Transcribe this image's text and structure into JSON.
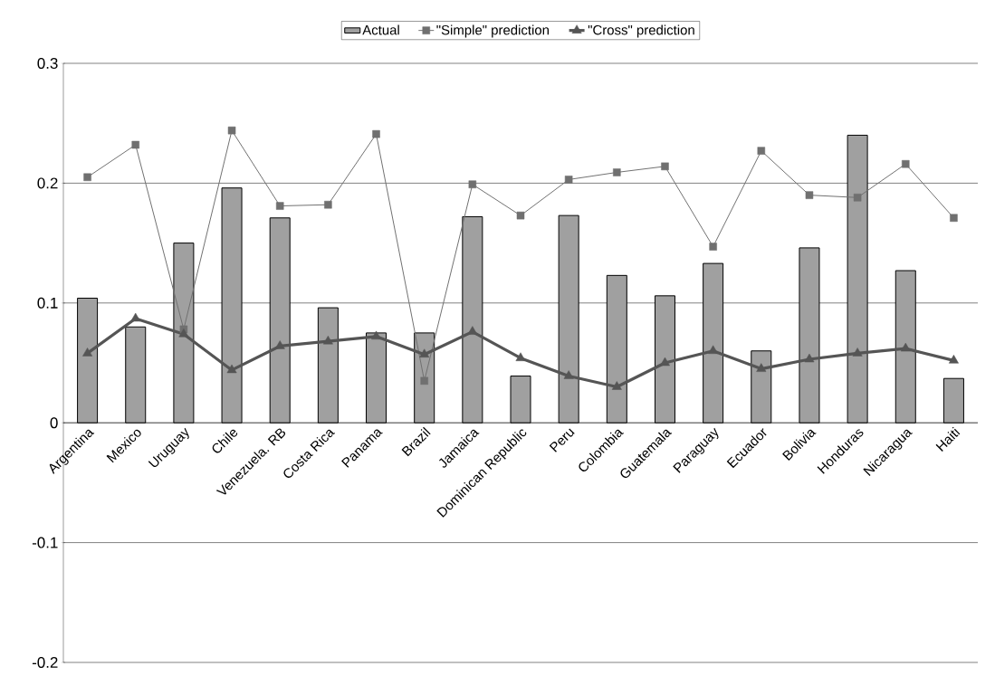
{
  "chart_data": {
    "type": "bar",
    "categories": [
      "Argentina",
      "Mexico",
      "Uruguay",
      "Chile",
      "Venezuela. RB",
      "Costa Rica",
      "Panama",
      "Brazil",
      "Jamaica",
      "Dominican Republic",
      "Peru",
      "Colombia",
      "Guatemala",
      "Paraguay",
      "Ecuador",
      "Bolivia",
      "Honduras",
      "Nicaragua",
      "Haiti"
    ],
    "series": [
      {
        "name": "Actual",
        "color": "#a0a0a0",
        "values": [
          0.104,
          0.08,
          0.15,
          0.196,
          0.171,
          0.096,
          0.075,
          0.075,
          0.172,
          0.039,
          0.173,
          0.123,
          0.106,
          0.133,
          0.06,
          0.146,
          0.24,
          0.127,
          0.037
        ]
      },
      {
        "name": "\"Simple\" prediction",
        "type": "line",
        "marker": "square",
        "color": "#707070",
        "values": [
          0.205,
          0.232,
          0.078,
          0.244,
          0.181,
          0.182,
          0.241,
          0.035,
          0.199,
          0.173,
          0.203,
          0.209,
          0.214,
          0.147,
          0.227,
          0.19,
          0.188,
          0.216,
          0.171
        ]
      },
      {
        "name": "\"Cross\" prediction",
        "type": "line",
        "marker": "triangle",
        "color": "#555555",
        "values": [
          0.058,
          0.087,
          0.074,
          0.044,
          0.064,
          0.068,
          0.072,
          0.057,
          0.076,
          0.054,
          0.039,
          0.03,
          0.05,
          0.06,
          0.045,
          0.053,
          0.058,
          0.062,
          0.052
        ]
      }
    ],
    "ylim": [
      -0.2,
      0.3
    ],
    "yticks": [
      -0.2,
      -0.1,
      0,
      0.1,
      0.2,
      0.3
    ],
    "grid": "y",
    "legend": "top"
  }
}
